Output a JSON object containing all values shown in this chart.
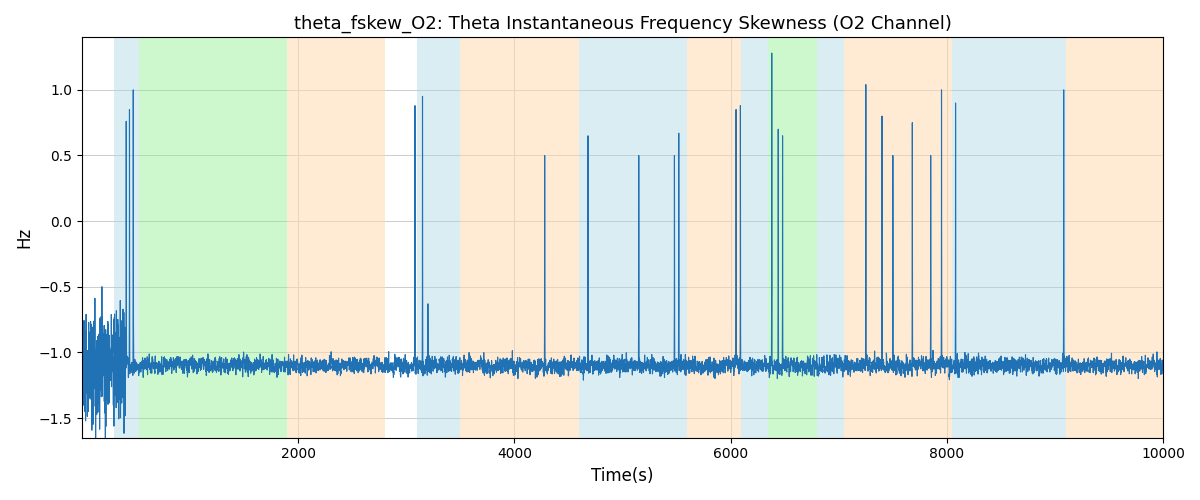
{
  "title": "theta_fskew_O2: Theta Instantaneous Frequency Skewness (O2 Channel)",
  "xlabel": "Time(s)",
  "ylabel": "Hz",
  "xlim": [
    0,
    10000
  ],
  "ylim": [
    -1.65,
    1.4
  ],
  "background_bands": [
    {
      "xmin": 300,
      "xmax": 530,
      "color": "#add8e6",
      "alpha": 0.45
    },
    {
      "xmin": 530,
      "xmax": 1900,
      "color": "#90ee90",
      "alpha": 0.45
    },
    {
      "xmin": 1900,
      "xmax": 2800,
      "color": "#ffdab0",
      "alpha": 0.55
    },
    {
      "xmin": 3100,
      "xmax": 3500,
      "color": "#add8e6",
      "alpha": 0.45
    },
    {
      "xmin": 3500,
      "xmax": 4600,
      "color": "#ffdab0",
      "alpha": 0.55
    },
    {
      "xmin": 4600,
      "xmax": 5600,
      "color": "#add8e6",
      "alpha": 0.45
    },
    {
      "xmin": 5600,
      "xmax": 6100,
      "color": "#ffdab0",
      "alpha": 0.55
    },
    {
      "xmin": 6100,
      "xmax": 6350,
      "color": "#add8e6",
      "alpha": 0.45
    },
    {
      "xmin": 6350,
      "xmax": 6800,
      "color": "#90ee90",
      "alpha": 0.45
    },
    {
      "xmin": 6800,
      "xmax": 7050,
      "color": "#add8e6",
      "alpha": 0.45
    },
    {
      "xmin": 7050,
      "xmax": 8050,
      "color": "#ffdab0",
      "alpha": 0.55
    },
    {
      "xmin": 8050,
      "xmax": 9100,
      "color": "#add8e6",
      "alpha": 0.45
    },
    {
      "xmin": 9100,
      "xmax": 10000,
      "color": "#ffdab0",
      "alpha": 0.55
    }
  ],
  "line_color": "#2171b5",
  "line_width": 0.8,
  "grid_color": "#cccccc",
  "yticks": [
    -1.5,
    -1.0,
    -0.5,
    0.0,
    0.5,
    1.0
  ],
  "xticks": [
    2000,
    4000,
    6000,
    8000,
    10000
  ],
  "noise_std": 0.055,
  "base_level": -1.1,
  "seed": 42,
  "n_points": 10000,
  "spikes": [
    [
      410,
      0.76
    ],
    [
      440,
      0.85
    ],
    [
      475,
      1.0
    ],
    [
      3080,
      0.88
    ],
    [
      3150,
      0.95
    ],
    [
      3200,
      -0.63
    ],
    [
      4280,
      0.5
    ],
    [
      4680,
      0.65
    ],
    [
      5150,
      0.5
    ],
    [
      5480,
      0.5
    ],
    [
      5520,
      0.67
    ],
    [
      6050,
      0.85
    ],
    [
      6090,
      0.88
    ],
    [
      6380,
      1.28
    ],
    [
      6440,
      0.7
    ],
    [
      6480,
      0.65
    ],
    [
      7250,
      1.04
    ],
    [
      7400,
      0.8
    ],
    [
      7500,
      0.5
    ],
    [
      7680,
      0.75
    ],
    [
      7850,
      0.5
    ],
    [
      7950,
      1.0
    ],
    [
      8080,
      0.9
    ],
    [
      9080,
      1.0
    ]
  ]
}
